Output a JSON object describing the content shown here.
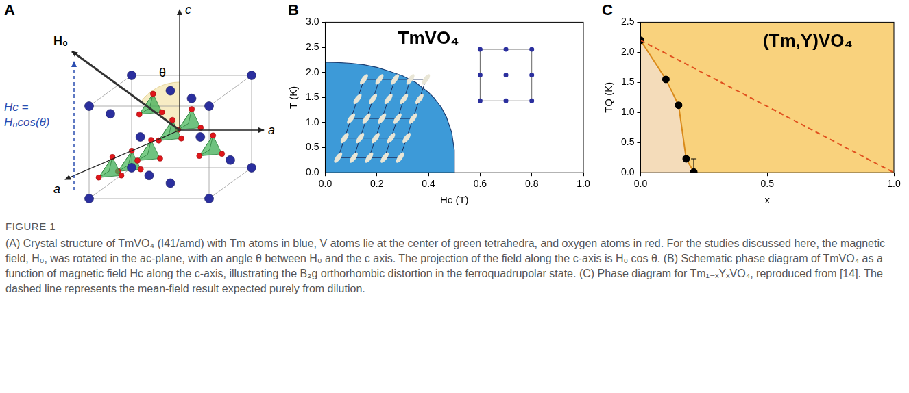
{
  "diagram": {
    "panel": "A",
    "labels": {
      "c_axis": "c",
      "a_axis_right": "a",
      "a_axis_front": "a",
      "field": "H₀",
      "angle": "θ",
      "projection_line1": "Hc =",
      "projection_line2": "H₀cos(θ)"
    }
  },
  "chart_data": [
    {
      "panel": "B",
      "type": "area",
      "title": "TmVO₄",
      "x_label": "Hc (T)",
      "y_label": "T (K)",
      "xlim": [
        0,
        1
      ],
      "xticks": [
        {
          "value": 0,
          "label": "0.0"
        },
        0.2,
        0.4,
        0.6,
        0.8,
        {
          "value": 1,
          "label": "1.0"
        }
      ],
      "ylim": [
        0,
        3
      ],
      "yticks": [
        {
          "value": 0,
          "label": "0.0"
        },
        0.5,
        {
          "value": 1,
          "label": "1.0"
        },
        1.5,
        {
          "value": 2,
          "label": "2.0"
        },
        2.5,
        {
          "value": 3,
          "label": "3.0"
        }
      ],
      "grid": false,
      "tick_labels": true,
      "series": [
        {
          "color": "#3d9ad8",
          "marker": "none",
          "line_style": "solid",
          "x": [
            0,
            0.05,
            0.1,
            0.15,
            0.2,
            0.25,
            0.3,
            0.35,
            0.4,
            0.42,
            0.45,
            0.47,
            0.49,
            0.5,
            0.5
          ],
          "values": [
            2.2,
            2.195,
            2.18,
            2.15,
            2.1,
            2.02,
            1.93,
            1.8,
            1.6,
            1.5,
            1.3,
            1.1,
            0.8,
            0.45,
            0
          ]
        }
      ]
    },
    {
      "panel": "C",
      "type": "line",
      "title": "(Tm,Y)VO₄",
      "x_label": "x",
      "y_label": "TQ (K)",
      "xlim": [
        0,
        1
      ],
      "xticks": [
        {
          "value": 0,
          "label": "0.0"
        },
        0.5,
        {
          "value": 1,
          "label": "1.0"
        }
      ],
      "ylim": [
        0,
        2.5
      ],
      "yticks": [
        {
          "value": 0,
          "label": "0.0"
        },
        0.5,
        {
          "value": 1,
          "label": "1.0"
        },
        1.5,
        {
          "value": 2,
          "label": "2.0"
        },
        2.5
      ],
      "grid": false,
      "tick_labels": true,
      "series": [
        {
          "type": "area",
          "color": "#d98a1a",
          "marker": "circle",
          "line_style": "solid",
          "x": [
            0,
            0.1,
            0.15,
            0.18,
            0.21
          ],
          "values": [
            2.2,
            1.55,
            1.12,
            0.23,
            0.01
          ],
          "errors": [
            0,
            0.02,
            0.04,
            0,
            0.22
          ]
        },
        {
          "type": "line",
          "color": "#e0501e",
          "marker": "none",
          "line_style": "dashed",
          "x": [
            0,
            1
          ],
          "values": [
            2.2,
            0
          ]
        }
      ]
    }
  ],
  "caption": {
    "label": "FIGURE 1",
    "text": "(A) Crystal structure of TmVO₄ (I41/amd) with Tm atoms in blue, V atoms lie at the center of green tetrahedra, and oxygen atoms in red. For the studies discussed here, the magnetic field, H₀, was rotated in the ac-plane, with an angle θ between H₀ and the c axis. The projection of the field along the c-axis is H₀ cos θ. (B) Schematic phase diagram of TmVO₄ as a function of magnetic field Hc along the c-axis, illustrating the B₂g orthorhombic distortion in the ferroquadrupolar state. (C) Phase diagram for Tm₁₋ₓYₓVO₄, reproduced from [14]. The dashed line represents the mean-field result expected purely from dilution."
  }
}
